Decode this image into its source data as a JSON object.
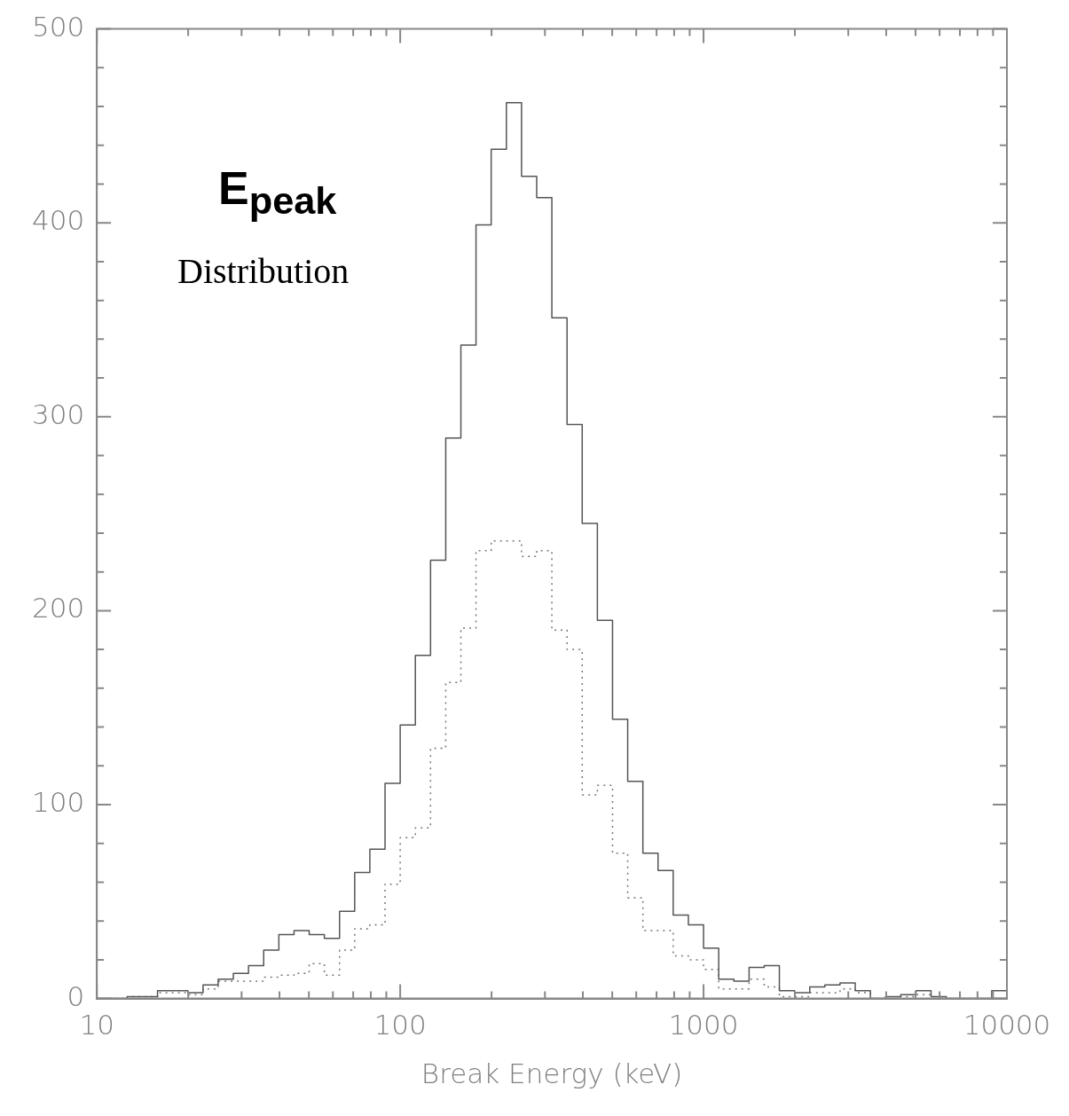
{
  "chart_data": {
    "type": "histogram",
    "xlabel": "Break Energy (keV)",
    "annotations": [
      "E$_{peak}$",
      "Distribution"
    ],
    "log": "x",
    "xlim": [
      10,
      10000
    ],
    "ylim": [
      0,
      500
    ],
    "xticks": [
      10,
      {
        "value": 20,
        "label": null
      },
      {
        "value": 30,
        "label": null
      },
      {
        "value": 40,
        "label": null
      },
      {
        "value": 50,
        "label": null
      },
      {
        "value": 60,
        "label": null
      },
      {
        "value": 70,
        "label": null
      },
      {
        "value": 80,
        "label": null
      },
      {
        "value": 90,
        "label": null
      },
      100,
      {
        "value": 200,
        "label": null
      },
      {
        "value": 300,
        "label": null
      },
      {
        "value": 400,
        "label": null
      },
      {
        "value": 500,
        "label": null
      },
      {
        "value": 600,
        "label": null
      },
      {
        "value": 700,
        "label": null
      },
      {
        "value": 800,
        "label": null
      },
      {
        "value": 900,
        "label": null
      },
      1000,
      {
        "value": 2000,
        "label": null
      },
      {
        "value": 3000,
        "label": null
      },
      {
        "value": 4000,
        "label": null
      },
      {
        "value": 5000,
        "label": null
      },
      {
        "value": 6000,
        "label": null
      },
      {
        "value": 7000,
        "label": null
      },
      {
        "value": 8000,
        "label": null
      },
      {
        "value": 9000,
        "label": null
      },
      10000
    ],
    "yticks": [
      0,
      {
        "value": 20,
        "label": null
      },
      {
        "value": 40,
        "label": null
      },
      {
        "value": 60,
        "label": null
      },
      {
        "value": 80,
        "label": null
      },
      100,
      {
        "value": 120,
        "label": null
      },
      {
        "value": 140,
        "label": null
      },
      {
        "value": 160,
        "label": null
      },
      {
        "value": 180,
        "label": null
      },
      200,
      {
        "value": 220,
        "label": null
      },
      {
        "value": 240,
        "label": null
      },
      {
        "value": 260,
        "label": null
      },
      {
        "value": 280,
        "label": null
      },
      300,
      {
        "value": 320,
        "label": null
      },
      {
        "value": 340,
        "label": null
      },
      {
        "value": 360,
        "label": null
      },
      {
        "value": 380,
        "label": null
      },
      400,
      {
        "value": 420,
        "label": null
      },
      {
        "value": 440,
        "label": null
      },
      {
        "value": 460,
        "label": null
      },
      {
        "value": 480,
        "label": null
      },
      500
    ],
    "bins": [
      10,
      11.22,
      12.59,
      14.13,
      15.85,
      17.78,
      19.95,
      22.39,
      25.12,
      28.18,
      31.62,
      35.48,
      39.81,
      44.67,
      50.12,
      56.23,
      63.1,
      70.79,
      79.43,
      89.13,
      100,
      112.2,
      125.9,
      141.3,
      158.5,
      177.8,
      199.5,
      223.9,
      251.2,
      281.8,
      316.2,
      354.8,
      398.1,
      446.7,
      501.2,
      562.3,
      631,
      707.9,
      794.3,
      891.3,
      1000,
      1122,
      1259,
      1413,
      1585,
      1778,
      1995,
      2239,
      2512,
      2818,
      3162,
      3548,
      3981,
      4467,
      5012,
      5623,
      6310,
      7079,
      7943,
      8913,
      10000
    ],
    "series": [
      {
        "color": "#555555",
        "line_style": "solid",
        "values": [
          0,
          0,
          1,
          1,
          4,
          4,
          3,
          7,
          10,
          13,
          17,
          25,
          33,
          35,
          33,
          31,
          45,
          65,
          77,
          111,
          141,
          177,
          226,
          289,
          337,
          399,
          438,
          462,
          424,
          413,
          351,
          296,
          245,
          195,
          144,
          112,
          75,
          66,
          43,
          38,
          26,
          10,
          9,
          16,
          17,
          4,
          3,
          6,
          7,
          8,
          4,
          0,
          1,
          2,
          4,
          1,
          0,
          0,
          0,
          4
        ]
      },
      {
        "color": "#777777",
        "line_style": "dotted",
        "values": [
          0,
          0,
          1,
          1,
          3,
          3,
          2,
          5,
          9,
          9,
          9,
          11,
          12,
          13,
          18,
          12,
          25,
          36,
          38,
          59,
          83,
          88,
          129,
          163,
          191,
          231,
          236,
          236,
          228,
          231,
          190,
          180,
          105,
          110,
          75,
          52,
          35,
          35,
          22,
          20,
          15,
          5,
          5,
          10,
          6,
          1,
          1,
          3,
          3,
          5,
          3,
          0,
          0,
          1,
          2,
          1,
          0,
          0,
          0,
          0
        ]
      }
    ]
  }
}
